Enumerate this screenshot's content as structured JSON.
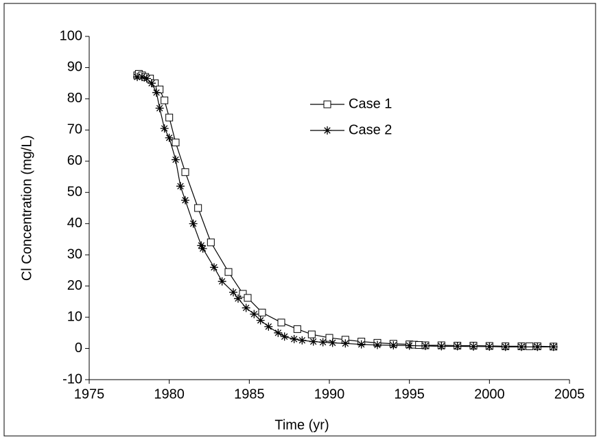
{
  "chart_data": {
    "type": "line",
    "x_label": "Time (yr)",
    "y_label": "Cl Concentration (mg/L)",
    "xlim": [
      1975,
      2005
    ],
    "xticks": [
      1975,
      1980,
      1985,
      1990,
      1995,
      2000,
      2005
    ],
    "ylim": [
      -10,
      100
    ],
    "yticks": [
      -10,
      0,
      10,
      20,
      30,
      40,
      50,
      60,
      70,
      80,
      90,
      100
    ],
    "grid": false,
    "legend": "upper center",
    "series": [
      {
        "name": "Case 1",
        "color": "#000000",
        "marker": "square",
        "x": [
          1978.0,
          1978.1,
          1978.3,
          1978.5,
          1978.8,
          1979.1,
          1979.4,
          1979.7,
          1980.0,
          1980.4,
          1981.0,
          1981.8,
          1982.6,
          1983.7,
          1984.6,
          1984.9,
          1985.8,
          1987.0,
          1988.0,
          1988.9,
          1990.0,
          1991.0,
          1992.0,
          1993.0,
          1994.0,
          1995.0,
          1995.3,
          1995.6,
          1996.0,
          1997.0,
          1998.0,
          1999.0,
          2000.0,
          2001.0,
          2002.0,
          2002.5,
          2003.0,
          2004.0
        ],
        "values": [
          87.5,
          88,
          87.5,
          87,
          86.5,
          85,
          83,
          79.5,
          74,
          66,
          56.5,
          45,
          34,
          24.5,
          17.5,
          16.2,
          11.5,
          8.3,
          6.2,
          4.5,
          3.4,
          2.8,
          2.2,
          1.8,
          1.5,
          1.3,
          1.2,
          1.1,
          1.0,
          1.0,
          0.9,
          0.9,
          0.8,
          0.7,
          0.7,
          0.7,
          0.7,
          0.6
        ]
      },
      {
        "name": "Case 2",
        "color": "#000000",
        "marker": "star",
        "x": [
          1978.0,
          1978.3,
          1978.6,
          1978.9,
          1979.2,
          1979.4,
          1979.7,
          1980.0,
          1980.4,
          1980.7,
          1981.0,
          1981.5,
          1982.0,
          1982.1,
          1982.8,
          1983.3,
          1984.0,
          1984.3,
          1984.8,
          1985.3,
          1985.7,
          1986.2,
          1986.8,
          1987.2,
          1987.8,
          1988.3,
          1989.0,
          1989.6,
          1990.2,
          1991.0,
          1992.0,
          1993.0,
          1994.0,
          1995.0,
          1996.0,
          1997.0,
          1998.0,
          1999.0,
          2000.0,
          2001.0,
          2002.0,
          2003.0,
          2004.0
        ],
        "values": [
          87,
          87,
          86.5,
          85,
          82,
          77,
          70.5,
          67.5,
          60.5,
          52,
          47.5,
          40,
          33,
          32,
          26,
          21.5,
          18,
          16,
          13,
          11,
          9,
          7,
          5,
          3.8,
          3,
          2.6,
          2.2,
          2.0,
          1.8,
          1.6,
          1.3,
          1.1,
          1.0,
          0.9,
          0.8,
          0.7,
          0.7,
          0.6,
          0.6,
          0.5,
          0.5,
          0.5,
          0.5
        ]
      }
    ]
  }
}
